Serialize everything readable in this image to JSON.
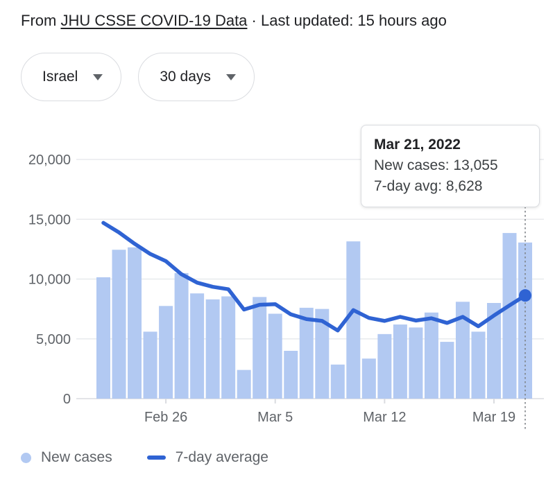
{
  "header": {
    "prefix": "From ",
    "source_link": "JHU CSSE COVID-19 Data",
    "suffix": " · Last updated: 15 hours ago"
  },
  "filters": {
    "region": "Israel",
    "range": "30 days"
  },
  "tooltip": {
    "title": "Mar 21, 2022",
    "rows": [
      {
        "label": "New cases:",
        "value": "13,055"
      },
      {
        "label": "7-day avg:",
        "value": "8,628"
      }
    ]
  },
  "legend": {
    "new_cases": "New cases",
    "avg": "7-day average"
  },
  "colors": {
    "bar": "#b2c9f2",
    "line": "#2f63d3",
    "grid": "#e8eaed",
    "zero_line": "#dadce0",
    "axis_text": "#5f6368",
    "dotted_guide": "#7f8388",
    "tick": "#dadce0"
  },
  "chart_data": {
    "type": "bar",
    "title": "COVID-19 new cases, Israel, 30 days",
    "ylim": [
      0,
      20000
    ],
    "y_ticks": [
      0,
      5000,
      10000,
      15000,
      20000
    ],
    "y_tick_labels": [
      "0",
      "5,000",
      "10,000",
      "15,000",
      "20,000"
    ],
    "x_tick_labels": [
      "Feb 26",
      "Mar 5",
      "Mar 12",
      "Mar 19"
    ],
    "x_tick_indices": [
      4,
      11,
      18,
      25
    ],
    "grid": true,
    "legend_position": "bottom",
    "highlight_index": 27,
    "highlight_date": "Mar 21, 2022",
    "series": [
      {
        "name": "New cases",
        "type": "bar",
        "values": [
          10150,
          12450,
          12650,
          5600,
          7750,
          10500,
          8800,
          8300,
          8550,
          2400,
          8500,
          7100,
          4000,
          7600,
          7500,
          2850,
          13150,
          3350,
          5400,
          6200,
          5950,
          7200,
          4750,
          8100,
          5600,
          8000,
          13850,
          13055
        ]
      },
      {
        "name": "7-day average",
        "type": "line",
        "values": [
          14700,
          13900,
          12950,
          12100,
          11500,
          10400,
          9700,
          9350,
          9150,
          7450,
          7850,
          7900,
          7050,
          6650,
          6500,
          5700,
          7400,
          6750,
          6500,
          6840,
          6530,
          6720,
          6330,
          6840,
          6050,
          6950,
          7800,
          8628
        ]
      }
    ]
  }
}
